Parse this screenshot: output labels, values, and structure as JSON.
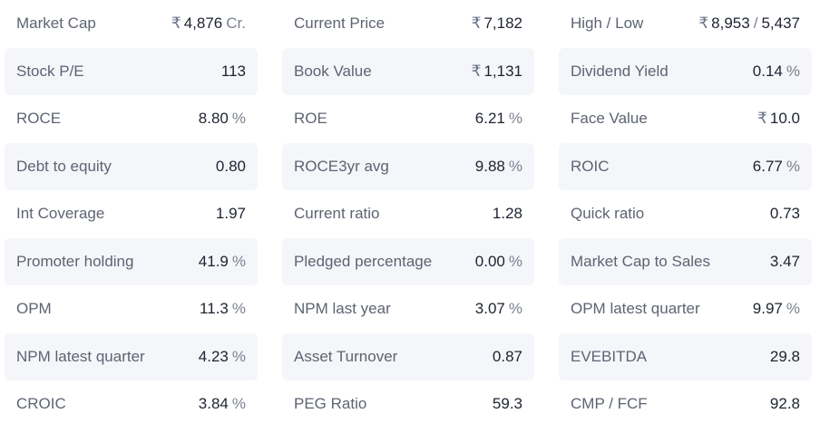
{
  "ratios": [
    {
      "name": "Market Cap",
      "prefix": "₹",
      "value": "4,876",
      "suffix": "Cr."
    },
    {
      "name": "Current Price",
      "prefix": "₹",
      "value": "7,182",
      "suffix": ""
    },
    {
      "name": "High / Low",
      "prefix": "₹",
      "value": "8,953",
      "sep": "/",
      "value2": "5,437",
      "suffix": ""
    },
    {
      "name": "Stock P/E",
      "prefix": "",
      "value": "113",
      "suffix": ""
    },
    {
      "name": "Book Value",
      "prefix": "₹",
      "value": "1,131",
      "suffix": ""
    },
    {
      "name": "Dividend Yield",
      "prefix": "",
      "value": "0.14",
      "suffix": "%"
    },
    {
      "name": "ROCE",
      "prefix": "",
      "value": "8.80",
      "suffix": "%"
    },
    {
      "name": "ROE",
      "prefix": "",
      "value": "6.21",
      "suffix": "%"
    },
    {
      "name": "Face Value",
      "prefix": "₹",
      "value": "10.0",
      "suffix": ""
    },
    {
      "name": "Debt to equity",
      "prefix": "",
      "value": "0.80",
      "suffix": ""
    },
    {
      "name": "ROCE3yr avg",
      "prefix": "",
      "value": "9.88",
      "suffix": "%"
    },
    {
      "name": "ROIC",
      "prefix": "",
      "value": "6.77",
      "suffix": "%"
    },
    {
      "name": "Int Coverage",
      "prefix": "",
      "value": "1.97",
      "suffix": ""
    },
    {
      "name": "Current ratio",
      "prefix": "",
      "value": "1.28",
      "suffix": ""
    },
    {
      "name": "Quick ratio",
      "prefix": "",
      "value": "0.73",
      "suffix": ""
    },
    {
      "name": "Promoter holding",
      "prefix": "",
      "value": "41.9",
      "suffix": "%"
    },
    {
      "name": "Pledged percentage",
      "prefix": "",
      "value": "0.00",
      "suffix": "%"
    },
    {
      "name": "Market Cap to Sales",
      "prefix": "",
      "value": "3.47",
      "suffix": ""
    },
    {
      "name": "OPM",
      "prefix": "",
      "value": "11.3",
      "suffix": "%"
    },
    {
      "name": "NPM last year",
      "prefix": "",
      "value": "3.07",
      "suffix": "%"
    },
    {
      "name": "OPM latest quarter",
      "prefix": "",
      "value": "9.97",
      "suffix": "%"
    },
    {
      "name": "NPM latest quarter",
      "prefix": "",
      "value": "4.23",
      "suffix": "%"
    },
    {
      "name": "Asset Turnover",
      "prefix": "",
      "value": "0.87",
      "suffix": ""
    },
    {
      "name": "EVEBITDA",
      "prefix": "",
      "value": "29.8",
      "suffix": ""
    },
    {
      "name": "CROIC",
      "prefix": "",
      "value": "3.84",
      "suffix": "%"
    },
    {
      "name": "PEG Ratio",
      "prefix": "",
      "value": "59.3",
      "suffix": ""
    },
    {
      "name": "CMP / FCF",
      "prefix": "",
      "value": "92.8",
      "suffix": ""
    }
  ]
}
